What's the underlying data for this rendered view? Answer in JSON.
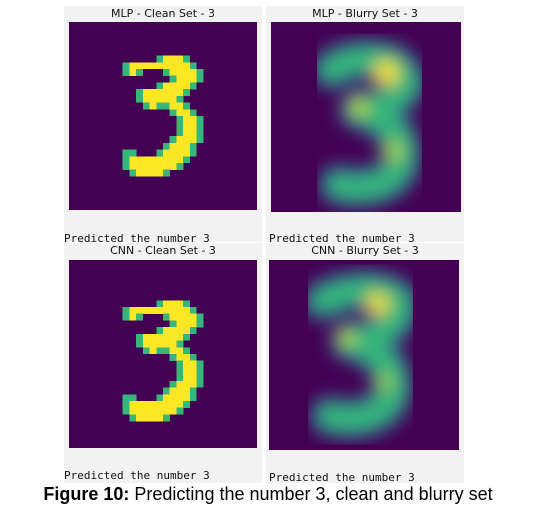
{
  "panels": [
    {
      "title": "MLP - Clean Set - 3",
      "prediction": "Predicted the number 3",
      "style": "clean"
    },
    {
      "title": "MLP - Blurry Set - 3",
      "prediction": "Predicted the number 3",
      "style": "blurry"
    },
    {
      "title": "CNN - Clean Set - 3",
      "prediction": "Predicted the number 3",
      "style": "clean"
    },
    {
      "title": "CNN - Blurry Set - 3",
      "prediction": "Predicted the number 3",
      "style": "blurry"
    }
  ],
  "caption": {
    "label": "Figure 10:",
    "text": " Predicting the number 3, clean and blurry set"
  },
  "colors": {
    "background": "#440154",
    "clean_stroke": "#fde725",
    "clean_edge": "#35b779",
    "blur_low": "#31688e",
    "blur_mid": "#35b779",
    "blur_high": "#fde725"
  }
}
